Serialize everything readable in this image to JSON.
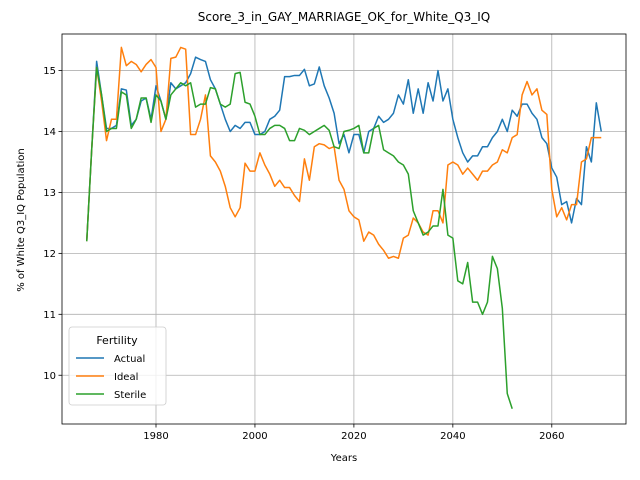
{
  "chart_data": {
    "type": "line",
    "title": "Score_3_in_GAY_MARRIAGE_OK_for_White_Q3_IQ",
    "xlabel": "Years",
    "ylabel": "% of White Q3_IQ Population",
    "xlim": [
      1961,
      2075
    ],
    "ylim": [
      9.2,
      15.6
    ],
    "xticks": [
      1980,
      2000,
      2020,
      2040,
      2060
    ],
    "yticks": [
      10,
      11,
      12,
      13,
      14,
      15
    ],
    "grid": true,
    "legend": {
      "title": "Fertility",
      "placement": "lower-left"
    },
    "series": [
      {
        "name": "Actual",
        "color": "#1f77b4",
        "x": [
          1966,
          1967,
          1968,
          1969,
          1970,
          1971,
          1972,
          1973,
          1974,
          1975,
          1976,
          1977,
          1978,
          1979,
          1980,
          1981,
          1982,
          1983,
          1984,
          1985,
          1986,
          1987,
          1988,
          1989,
          1990,
          1991,
          1992,
          1993,
          1994,
          1995,
          1996,
          1997,
          1998,
          1999,
          2000,
          2001,
          2002,
          2003,
          2004,
          2005,
          2006,
          2007,
          2008,
          2009,
          2010,
          2011,
          2012,
          2013,
          2014,
          2015,
          2016,
          2017,
          2018,
          2019,
          2020,
          2021,
          2022,
          2023,
          2024,
          2025,
          2026,
          2027,
          2028,
          2029,
          2030,
          2031,
          2032,
          2033,
          2034,
          2035,
          2036,
          2037,
          2038,
          2039,
          2040,
          2041,
          2042,
          2043,
          2044,
          2045,
          2046,
          2047,
          2048,
          2049,
          2050,
          2051,
          2052,
          2053,
          2054,
          2055,
          2056,
          2057,
          2058,
          2059,
          2060,
          2061,
          2062,
          2063,
          2064,
          2065,
          2066,
          2067,
          2068,
          2069,
          2070
        ],
        "values": [
          12.2,
          13.7,
          15.15,
          14.6,
          14.05,
          14.05,
          14.1,
          14.7,
          14.68,
          14.1,
          14.2,
          14.5,
          14.55,
          14.2,
          14.75,
          14.5,
          14.2,
          14.8,
          14.7,
          14.75,
          14.8,
          14.95,
          15.22,
          15.18,
          15.15,
          14.85,
          14.7,
          14.45,
          14.2,
          14.0,
          14.1,
          14.05,
          14.15,
          14.15,
          13.95,
          13.95,
          14.0,
          14.2,
          14.25,
          14.35,
          14.9,
          14.9,
          14.92,
          14.92,
          15.02,
          14.75,
          14.78,
          15.06,
          14.75,
          14.55,
          14.3,
          13.8,
          13.95,
          13.65,
          13.95,
          13.95,
          13.65,
          14.0,
          14.05,
          14.25,
          14.15,
          14.2,
          14.3,
          14.6,
          14.45,
          14.85,
          14.3,
          14.7,
          14.3,
          14.8,
          14.5,
          15.0,
          14.5,
          14.7,
          14.2,
          13.9,
          13.65,
          13.5,
          13.6,
          13.6,
          13.75,
          13.75,
          13.9,
          14.0,
          14.2,
          14.0,
          14.35,
          14.25,
          14.45,
          14.45,
          14.3,
          14.2,
          13.9,
          13.8,
          13.4,
          13.25,
          12.8,
          12.85,
          12.5,
          12.9,
          12.8,
          13.75,
          13.5,
          14.47,
          14.0
        ]
      },
      {
        "name": "Ideal",
        "color": "#ff7f0e",
        "x": [
          1966,
          1967,
          1968,
          1969,
          1970,
          1971,
          1972,
          1973,
          1974,
          1975,
          1976,
          1977,
          1978,
          1979,
          1980,
          1981,
          1982,
          1983,
          1984,
          1985,
          1986,
          1987,
          1988,
          1989,
          1990,
          1991,
          1992,
          1993,
          1994,
          1995,
          1996,
          1997,
          1998,
          1999,
          2000,
          2001,
          2002,
          2003,
          2004,
          2005,
          2006,
          2007,
          2008,
          2009,
          2010,
          2011,
          2012,
          2013,
          2014,
          2015,
          2016,
          2017,
          2018,
          2019,
          2020,
          2021,
          2022,
          2023,
          2024,
          2025,
          2026,
          2027,
          2028,
          2029,
          2030,
          2031,
          2032,
          2033,
          2034,
          2035,
          2036,
          2037,
          2038,
          2039,
          2040,
          2041,
          2042,
          2043,
          2044,
          2045,
          2046,
          2047,
          2048,
          2049,
          2050,
          2051,
          2052,
          2053,
          2054,
          2055,
          2056,
          2057,
          2058,
          2059,
          2060,
          2061,
          2062,
          2063,
          2064,
          2065,
          2066,
          2067,
          2068,
          2069,
          2070
        ],
        "values": [
          12.2,
          13.7,
          15.05,
          14.5,
          13.85,
          14.2,
          14.2,
          15.38,
          15.08,
          15.15,
          15.1,
          14.98,
          15.1,
          15.18,
          15.05,
          14.0,
          14.2,
          15.2,
          15.22,
          15.38,
          15.35,
          13.95,
          13.95,
          14.2,
          14.6,
          13.6,
          13.5,
          13.35,
          13.1,
          12.75,
          12.6,
          12.75,
          13.48,
          13.35,
          13.35,
          13.65,
          13.45,
          13.3,
          13.1,
          13.2,
          13.08,
          13.08,
          12.95,
          12.85,
          13.55,
          13.2,
          13.75,
          13.8,
          13.78,
          13.72,
          13.75,
          13.2,
          13.05,
          12.7,
          12.6,
          12.55,
          12.2,
          12.35,
          12.3,
          12.15,
          12.05,
          11.92,
          11.95,
          11.92,
          12.25,
          12.3,
          12.58,
          12.5,
          12.35,
          12.3,
          12.7,
          12.7,
          12.5,
          13.45,
          13.5,
          13.45,
          13.3,
          13.4,
          13.3,
          13.2,
          13.35,
          13.35,
          13.45,
          13.5,
          13.7,
          13.65,
          13.9,
          13.95,
          14.6,
          14.82,
          14.6,
          14.7,
          14.35,
          14.28,
          13.05,
          12.6,
          12.75,
          12.55,
          12.8,
          12.8,
          13.5,
          13.55,
          13.9,
          13.9,
          13.9
        ]
      },
      {
        "name": "Sterile",
        "color": "#2ca02c",
        "x": [
          1966,
          1967,
          1968,
          1969,
          1970,
          1971,
          1972,
          1973,
          1974,
          1975,
          1976,
          1977,
          1978,
          1979,
          1980,
          1981,
          1982,
          1983,
          1984,
          1985,
          1986,
          1987,
          1988,
          1989,
          1990,
          1991,
          1992,
          1993,
          1994,
          1995,
          1996,
          1997,
          1998,
          1999,
          2000,
          2001,
          2002,
          2003,
          2004,
          2005,
          2006,
          2007,
          2008,
          2009,
          2010,
          2011,
          2012,
          2013,
          2014,
          2015,
          2016,
          2017,
          2018,
          2019,
          2020,
          2021,
          2022,
          2023,
          2024,
          2025,
          2026,
          2027,
          2028,
          2029,
          2030,
          2031,
          2032,
          2033,
          2034,
          2035,
          2036,
          2037,
          2038,
          2039,
          2040,
          2041,
          2042,
          2043,
          2044,
          2045,
          2046,
          2047,
          2048,
          2049,
          2050,
          2051,
          2052
        ],
        "values": [
          12.2,
          13.7,
          15.05,
          14.6,
          14.0,
          14.05,
          14.05,
          14.65,
          14.6,
          14.05,
          14.2,
          14.55,
          14.55,
          14.15,
          14.6,
          14.5,
          14.2,
          14.6,
          14.7,
          14.8,
          14.75,
          14.8,
          14.4,
          14.45,
          14.45,
          14.72,
          14.7,
          14.45,
          14.4,
          14.45,
          14.95,
          14.97,
          14.48,
          14.45,
          14.25,
          13.95,
          13.95,
          14.05,
          14.1,
          14.1,
          14.05,
          13.85,
          13.85,
          14.05,
          14.02,
          13.95,
          14.0,
          14.05,
          14.1,
          14.02,
          13.75,
          13.72,
          14.0,
          14.02,
          14.05,
          14.1,
          13.65,
          13.65,
          14.05,
          14.1,
          13.7,
          13.65,
          13.6,
          13.5,
          13.45,
          13.3,
          12.7,
          12.5,
          12.3,
          12.35,
          12.45,
          12.45,
          13.05,
          12.3,
          12.25,
          11.55,
          11.5,
          11.85,
          11.2,
          11.2,
          11.0,
          11.2,
          11.95,
          11.75,
          11.1,
          9.7,
          9.45
        ]
      }
    ]
  }
}
